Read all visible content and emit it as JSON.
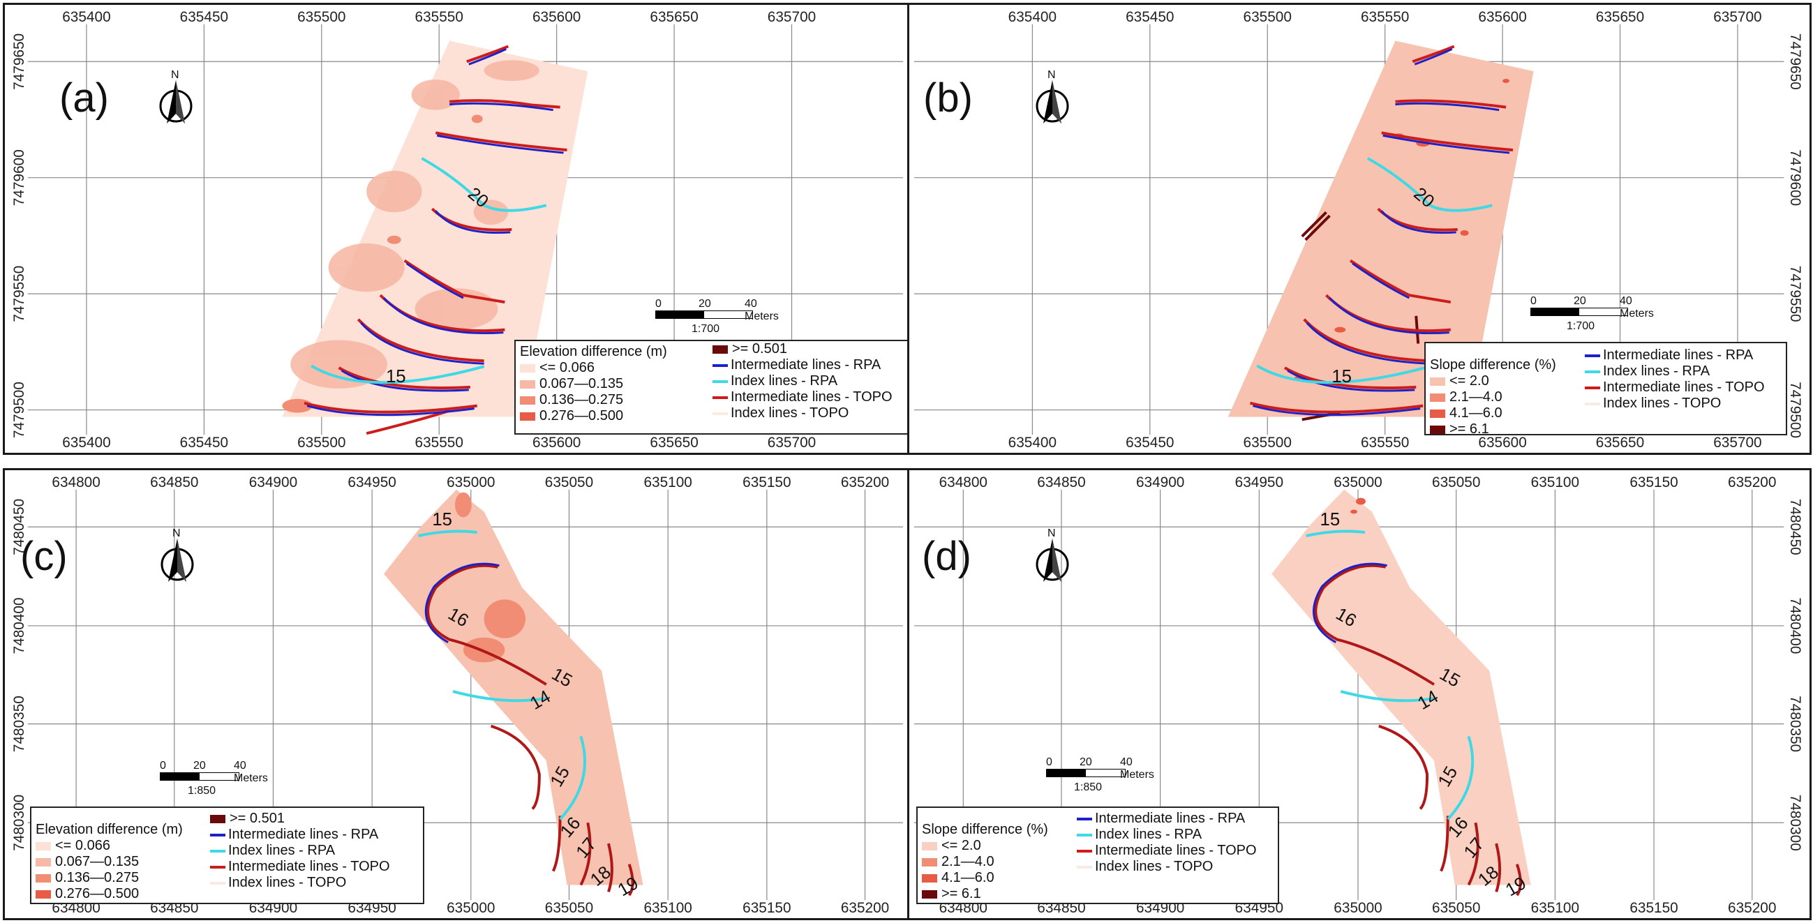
{
  "colors": {
    "class1": "#fde0d6",
    "class2": "#f7b9a5",
    "class3": "#f08d74",
    "class4": "#e85c46",
    "class5": "#6b0a0a",
    "rpa_intermediate": "#1c22c8",
    "rpa_index": "#3fd9e6",
    "topo_intermediate": "#cc1c1c",
    "topo_index": "#fbeae4"
  },
  "panels": {
    "a": {
      "label": "(a)",
      "x_ticks_top": [
        "635400",
        "635450",
        "635500",
        "635550",
        "635600",
        "635650",
        "635700"
      ],
      "x_ticks_bottom": [
        "635400",
        "635450",
        "635500",
        "635550",
        "635600",
        "635650",
        "635700"
      ],
      "y_ticks": [
        "7479650",
        "7479600",
        "7479550",
        "7479500"
      ],
      "north": "N",
      "scale_ticks": [
        "0",
        "20",
        "40 Meters"
      ],
      "scale_ratio": "1:700",
      "legend": {
        "title": "Elevation difference (m)",
        "classes": [
          "<= 0.066",
          "0.067—0.135",
          "0.136—0.275",
          "0.276—0.500",
          ">= 0.501"
        ],
        "lines": [
          "Intermediate lines - RPA",
          "Index lines - RPA",
          "Intermediate lines - TOPO",
          "Index lines - TOPO"
        ]
      },
      "contour_labels": [
        "20",
        "15"
      ]
    },
    "b": {
      "label": "(b)",
      "x_ticks_top": [
        "635400",
        "635450",
        "635500",
        "635550",
        "635600",
        "635650",
        "635700"
      ],
      "x_ticks_bottom": [
        "635400",
        "635450",
        "635500",
        "635550",
        "635600",
        "635650",
        "635700"
      ],
      "y_ticks": [
        "7479650",
        "7479600",
        "7479550",
        "7479500"
      ],
      "north": "N",
      "scale_ticks": [
        "0",
        "20",
        "40 Meters"
      ],
      "scale_ratio": "1:700",
      "legend": {
        "title": "Slope difference (%)",
        "classes": [
          "<= 2.0",
          "2.1—4.0",
          "4.1—6.0",
          ">= 6.1"
        ],
        "lines": [
          "Intermediate lines - RPA",
          "Index lines - RPA",
          "Intermediate lines - TOPO",
          "Index lines - TOPO"
        ]
      },
      "contour_labels": [
        "20",
        "15"
      ]
    },
    "c": {
      "label": "(c)",
      "x_ticks_top": [
        "634800",
        "634850",
        "634900",
        "634950",
        "635000",
        "635050",
        "635100",
        "635150",
        "635200"
      ],
      "x_ticks_bottom": [
        "634800",
        "634850",
        "634900",
        "634950",
        "635000",
        "635050",
        "635100",
        "635150",
        "635200"
      ],
      "y_ticks": [
        "7480450",
        "7480400",
        "7480350",
        "7480300"
      ],
      "north": "N",
      "scale_ticks": [
        "0",
        "20",
        "40 Meters"
      ],
      "scale_ratio": "1:850",
      "legend": {
        "title": "Elevation difference (m)",
        "classes": [
          "<= 0.066",
          "0.067—0.135",
          "0.136—0.275",
          "0.276—0.500",
          ">= 0.501"
        ],
        "lines": [
          "Intermediate lines - RPA",
          "Index lines - RPA",
          "Intermediate lines - TOPO",
          "Index lines - TOPO"
        ]
      },
      "contour_labels": [
        "15",
        "16",
        "15",
        "14",
        "15",
        "16",
        "17",
        "18",
        "19"
      ]
    },
    "d": {
      "label": "(d)",
      "x_ticks_top": [
        "634800",
        "634850",
        "634900",
        "634950",
        "635000",
        "635050",
        "635100",
        "635150",
        "635200"
      ],
      "x_ticks_bottom": [
        "634800",
        "634850",
        "634900",
        "634950",
        "635000",
        "635050",
        "635100",
        "635150",
        "635200"
      ],
      "y_ticks": [
        "7480450",
        "7480400",
        "7480350",
        "7480300"
      ],
      "north": "N",
      "scale_ticks": [
        "0",
        "20",
        "40 Meters"
      ],
      "scale_ratio": "1:850",
      "legend": {
        "title": "Slope difference (%)",
        "classes": [
          "<= 2.0",
          "2.1—4.0",
          "4.1—6.0",
          ">= 6.1"
        ],
        "lines": [
          "Intermediate lines - RPA",
          "Index lines - RPA",
          "Intermediate lines - TOPO",
          "Index lines - TOPO"
        ]
      },
      "contour_labels": [
        "15",
        "16",
        "15",
        "14",
        "15",
        "16",
        "17",
        "18",
        "19"
      ]
    }
  }
}
